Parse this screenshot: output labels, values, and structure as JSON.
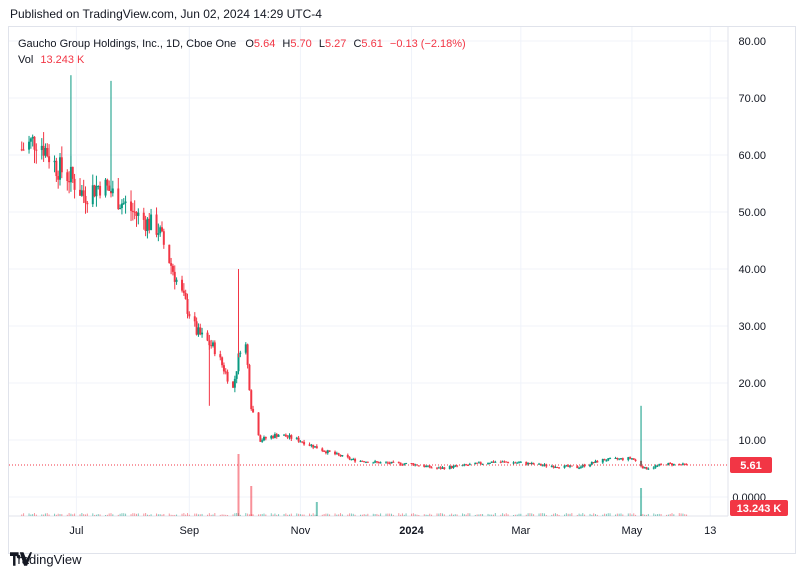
{
  "header": {
    "published": "Published on TradingView.com, Jun 02, 2024 14:29 UTC-4"
  },
  "legend": {
    "symbol": "Gaucho Group Holdings, Inc., 1D, Cboe One",
    "o_label": "O",
    "o_value": "5.64",
    "h_label": "H",
    "h_value": "5.70",
    "l_label": "L",
    "l_value": "5.27",
    "c_label": "C",
    "c_value": "5.61",
    "change": "−0.13 (−2.18%)",
    "vol_label": "Vol",
    "vol_value": "13.243 K"
  },
  "footer": {
    "brand": "TradingView"
  },
  "colors": {
    "up": "#089981",
    "down": "#f23645",
    "grid": "#f0f3fa",
    "axis_text": "#131722"
  },
  "chart_data": {
    "type": "candlestick",
    "title": "",
    "xlabel": "",
    "ylabel": "",
    "y_ticks": [
      "80.00",
      "70.00",
      "60.00",
      "50.00",
      "40.00",
      "30.00",
      "20.00",
      "10.00",
      "0.0000"
    ],
    "x_ticks": [
      "Jul",
      "Sep",
      "Nov",
      "2024",
      "Mar",
      "May",
      "13"
    ],
    "ylim": [
      -3,
      82
    ],
    "last_price_label": "5.61",
    "last_volume_label": "13.243 K",
    "close_series": [
      {
        "date": "2023-06-01",
        "close": 61
      },
      {
        "date": "2023-06-10",
        "close": 63
      },
      {
        "date": "2023-06-20",
        "close": 58
      },
      {
        "date": "2023-06-28",
        "close": 56
      },
      {
        "date": "2023-07-05",
        "close": 53
      },
      {
        "date": "2023-07-15",
        "close": 55
      },
      {
        "date": "2023-07-25",
        "close": 52
      },
      {
        "date": "2023-08-05",
        "close": 49
      },
      {
        "date": "2023-08-15",
        "close": 47
      },
      {
        "date": "2023-08-25",
        "close": 38
      },
      {
        "date": "2023-09-05",
        "close": 29
      },
      {
        "date": "2023-09-15",
        "close": 26
      },
      {
        "date": "2023-09-25",
        "close": 19
      },
      {
        "date": "2023-10-01",
        "close": 30
      },
      {
        "date": "2023-10-05",
        "close": 16
      },
      {
        "date": "2023-10-10",
        "close": 10
      },
      {
        "date": "2023-10-20",
        "close": 11
      },
      {
        "date": "2023-10-31",
        "close": 10
      },
      {
        "date": "2023-11-15",
        "close": 8
      },
      {
        "date": "2023-11-30",
        "close": 6.5
      },
      {
        "date": "2023-12-15",
        "close": 6
      },
      {
        "date": "2024-01-01",
        "close": 5.8
      },
      {
        "date": "2024-01-15",
        "close": 5
      },
      {
        "date": "2024-02-01",
        "close": 5.6
      },
      {
        "date": "2024-02-15",
        "close": 6.2
      },
      {
        "date": "2024-03-01",
        "close": 6
      },
      {
        "date": "2024-03-15",
        "close": 5.5
      },
      {
        "date": "2024-04-01",
        "close": 5.2
      },
      {
        "date": "2024-04-15",
        "close": 6.5
      },
      {
        "date": "2024-05-01",
        "close": 6.8
      },
      {
        "date": "2024-05-08",
        "close": 5.0
      },
      {
        "date": "2024-05-20",
        "close": 5.8
      },
      {
        "date": "2024-05-31",
        "close": 5.61
      }
    ],
    "spikes": [
      {
        "date": "2023-06-28",
        "high": 74
      },
      {
        "date": "2023-07-20",
        "high": 73
      },
      {
        "date": "2023-09-28",
        "high": 40
      },
      {
        "date": "2023-09-12",
        "low": 16
      },
      {
        "date": "2024-05-06",
        "high": 16
      }
    ]
  }
}
